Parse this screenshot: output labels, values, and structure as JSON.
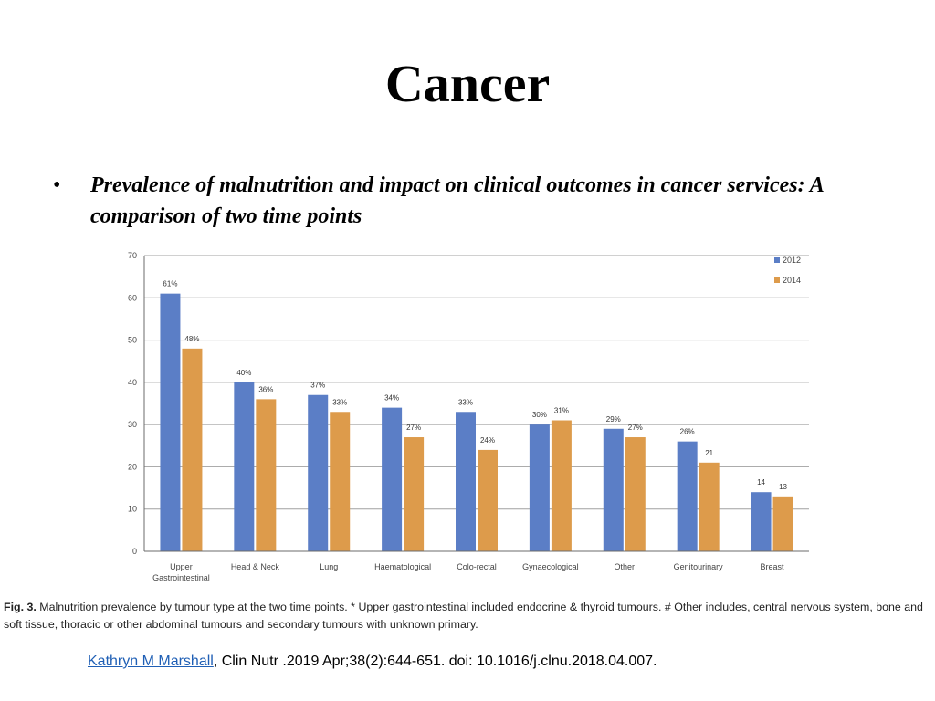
{
  "slide": {
    "title": "Cancer",
    "bullet_symbol": "•",
    "bullet_text": "Prevalence of malnutrition and impact on clinical outcomes in cancer services: A comparison of two time points"
  },
  "colors": {
    "series_2012": "#5b7ec6",
    "series_2014": "#dd9b4b",
    "gridline": "#a0a0a0",
    "axis": "#6b6b6b"
  },
  "chart_data": {
    "type": "bar",
    "categories": [
      "Upper Gastrointestinal",
      "Head & Neck",
      "Lung",
      "Haematological",
      "Colo-rectal",
      "Gynaecological",
      "Other",
      "Genitourinary",
      "Breast"
    ],
    "category_lines": [
      [
        "Upper",
        "Gastrointestinal"
      ],
      [
        "Head & Neck"
      ],
      [
        "Lung"
      ],
      [
        "Haematological"
      ],
      [
        "Colo-rectal"
      ],
      [
        "Gynaecological"
      ],
      [
        "Other"
      ],
      [
        "Genitourinary"
      ],
      [
        "Breast"
      ]
    ],
    "series": [
      {
        "name": "2012",
        "values": [
          61,
          40,
          37,
          34,
          33,
          30,
          29,
          26,
          14
        ],
        "labels": [
          "61%",
          "40%",
          "37%",
          "34%",
          "33%",
          "30%",
          "29%",
          "26%",
          "14"
        ]
      },
      {
        "name": "2014",
        "values": [
          48,
          36,
          33,
          27,
          24,
          31,
          27,
          21,
          13
        ],
        "labels": [
          "48%",
          "36%",
          "33%",
          "27%",
          "24%",
          "31%",
          "27%",
          "21",
          "13"
        ]
      }
    ],
    "ylim": [
      0,
      70
    ],
    "yticks": [
      0,
      10,
      20,
      30,
      40,
      50,
      60,
      70
    ],
    "grid": true,
    "legend_position": "top-right"
  },
  "caption": {
    "label": "Fig. 3.",
    "text": "Malnutrition prevalence by tumour type at the two time points. * Upper gastrointestinal included endocrine & thyroid tumours. # Other includes, central nervous system, bone and soft tissue, thoracic or other abdominal tumours and secondary tumours with unknown primary."
  },
  "citation": {
    "author_link": "Kathryn M Marshall",
    "text": ", Clin Nutr .2019 Apr;38(2):644-651. doi: 10.1016/j.clnu.2018.04.007."
  }
}
